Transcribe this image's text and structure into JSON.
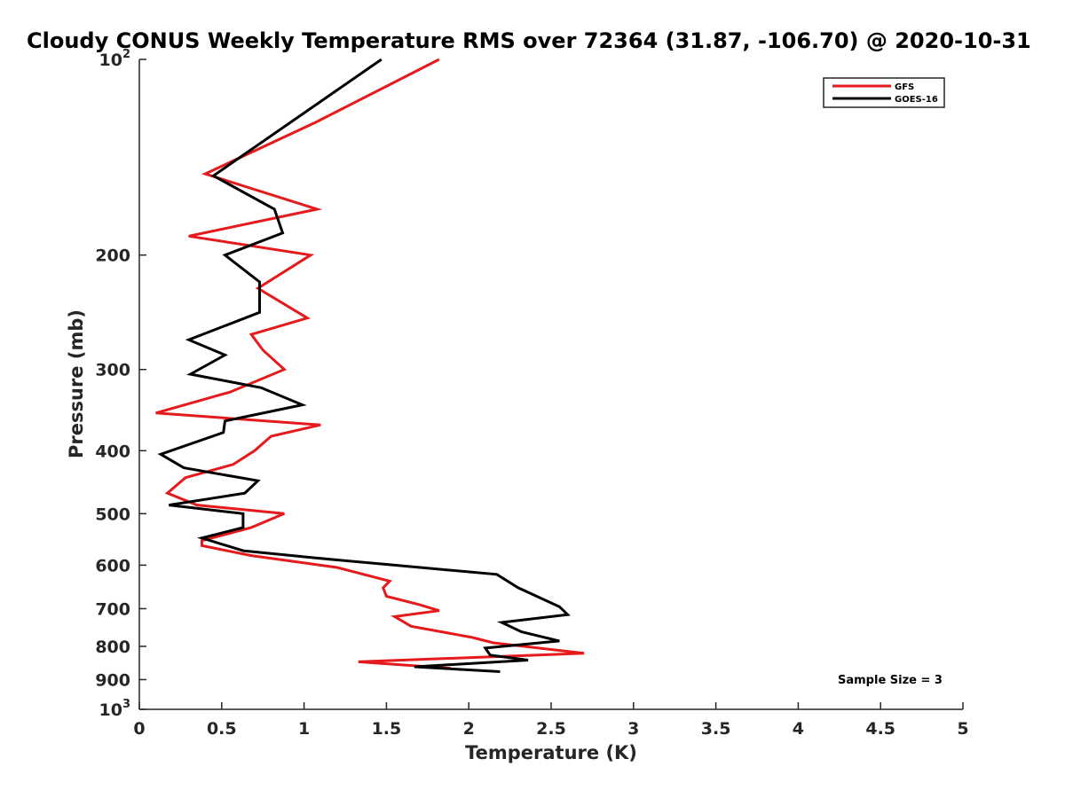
{
  "chart_data": {
    "type": "line",
    "title": "Cloudy CONUS Weekly Temperature RMS over 72364 (31.87, -106.70) @ 2020-10-31",
    "xlabel": "Temperature (K)",
    "ylabel": "Pressure (mb)",
    "xlim": [
      0,
      5
    ],
    "ylim": [
      100,
      1000
    ],
    "yscale": "log",
    "y_reversed": true,
    "x_ticks": [
      "0",
      "0.5",
      "1",
      "1.5",
      "2",
      "2.5",
      "3",
      "3.5",
      "4",
      "4.5",
      "5"
    ],
    "y_ticks": [
      {
        "value": 100,
        "base": "10",
        "exp": "2"
      },
      {
        "value": 200,
        "label": "200"
      },
      {
        "value": 300,
        "label": "300"
      },
      {
        "value": 400,
        "label": "400"
      },
      {
        "value": 500,
        "label": "500"
      },
      {
        "value": 600,
        "label": "600"
      },
      {
        "value": 700,
        "label": "700"
      },
      {
        "value": 800,
        "label": "800"
      },
      {
        "value": 900,
        "label": "900"
      },
      {
        "value": 1000,
        "base": "10",
        "exp": "3"
      }
    ],
    "legend_position": "top-right",
    "annotation": "Sample Size = 3",
    "series": [
      {
        "name": "GFS",
        "color": "#e41a1c",
        "points": [
          [
            1.82,
            100
          ],
          [
            1.07,
            125
          ],
          [
            0.4,
            150
          ],
          [
            1.08,
            170
          ],
          [
            0.3,
            187
          ],
          [
            1.04,
            200
          ],
          [
            0.72,
            225
          ],
          [
            1.02,
            250
          ],
          [
            0.68,
            265
          ],
          [
            0.75,
            280
          ],
          [
            0.88,
            300
          ],
          [
            0.55,
            325
          ],
          [
            0.1,
            350
          ],
          [
            1.1,
            365
          ],
          [
            0.8,
            380
          ],
          [
            0.7,
            400
          ],
          [
            0.57,
            420
          ],
          [
            0.28,
            440
          ],
          [
            0.17,
            465
          ],
          [
            0.35,
            485
          ],
          [
            0.88,
            500
          ],
          [
            0.68,
            525
          ],
          [
            0.38,
            550
          ],
          [
            0.38,
            560
          ],
          [
            0.68,
            580
          ],
          [
            1.2,
            605
          ],
          [
            1.52,
            635
          ],
          [
            1.48,
            650
          ],
          [
            1.5,
            670
          ],
          [
            1.7,
            690
          ],
          [
            1.82,
            705
          ],
          [
            1.55,
            720
          ],
          [
            1.65,
            745
          ],
          [
            2.02,
            775
          ],
          [
            2.15,
            790
          ],
          [
            2.7,
            820
          ],
          [
            1.33,
            845
          ],
          [
            1.89,
            865
          ]
        ]
      },
      {
        "name": "GOES-16",
        "color": "#000000",
        "points": [
          [
            1.47,
            100
          ],
          [
            0.45,
            151
          ],
          [
            0.82,
            170
          ],
          [
            0.87,
            185
          ],
          [
            0.52,
            200
          ],
          [
            0.73,
            220
          ],
          [
            0.73,
            245
          ],
          [
            0.3,
            270
          ],
          [
            0.52,
            285
          ],
          [
            0.31,
            305
          ],
          [
            0.74,
            320
          ],
          [
            0.99,
            340
          ],
          [
            0.52,
            360
          ],
          [
            0.51,
            375
          ],
          [
            0.13,
            405
          ],
          [
            0.27,
            425
          ],
          [
            0.72,
            445
          ],
          [
            0.64,
            465
          ],
          [
            0.18,
            485
          ],
          [
            0.63,
            500
          ],
          [
            0.63,
            525
          ],
          [
            0.38,
            545
          ],
          [
            0.63,
            570
          ],
          [
            1.07,
            585
          ],
          [
            2.17,
            620
          ],
          [
            2.3,
            650
          ],
          [
            2.55,
            695
          ],
          [
            2.6,
            715
          ],
          [
            2.2,
            735
          ],
          [
            2.32,
            760
          ],
          [
            2.55,
            785
          ],
          [
            2.1,
            805
          ],
          [
            2.13,
            825
          ],
          [
            2.36,
            840
          ],
          [
            1.67,
            860
          ],
          [
            2.19,
            875
          ]
        ]
      }
    ]
  }
}
